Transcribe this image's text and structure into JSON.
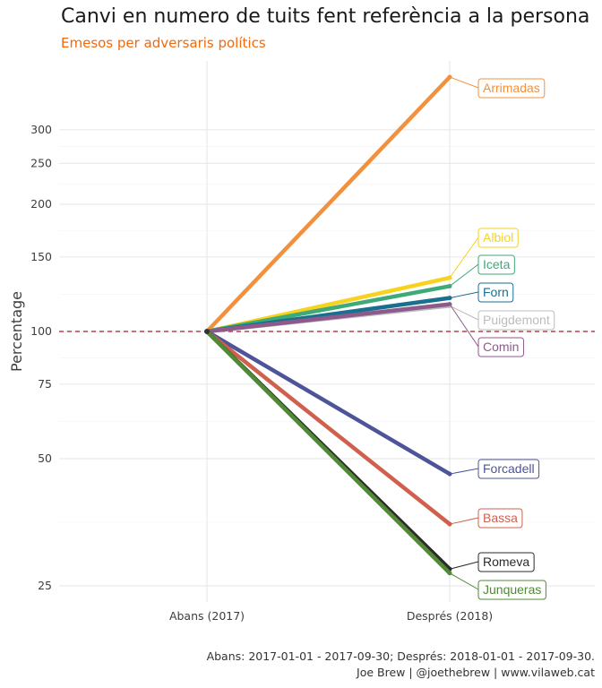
{
  "chart_data": {
    "type": "line",
    "title": "Canvi en numero de tuits fent referència a la persona",
    "subtitle": "Emesos per adversaris polítics",
    "ylabel": "Percentage",
    "xlabel": "",
    "categories": [
      "Abans (2017)",
      "Després (2018)"
    ],
    "y_scale": "log",
    "ylim": [
      22,
      430
    ],
    "y_ticks": [
      25,
      50,
      75,
      100,
      150,
      200,
      250,
      300
    ],
    "reference_line": {
      "y": 100,
      "style": "dashed",
      "color": "#a11d21"
    },
    "grid": true,
    "series": [
      {
        "name": "Arrimadas",
        "values": [
          100,
          400
        ],
        "color": "#f2913d"
      },
      {
        "name": "Albiol",
        "values": [
          100,
          134
        ],
        "color": "#f7d21e"
      },
      {
        "name": "Iceta",
        "values": [
          100,
          128
        ],
        "color": "#3daa77"
      },
      {
        "name": "Forn",
        "values": [
          100,
          120
        ],
        "color": "#1b6f8e"
      },
      {
        "name": "Puigdemont",
        "values": [
          100,
          115
        ],
        "color": "#bcbcbc"
      },
      {
        "name": "Comin",
        "values": [
          100,
          116
        ],
        "color": "#8e5a8c"
      },
      {
        "name": "Forcadell",
        "values": [
          100,
          46
        ],
        "color": "#4d5499"
      },
      {
        "name": "Bassa",
        "values": [
          100,
          35
        ],
        "color": "#d0604d"
      },
      {
        "name": "Romeva",
        "values": [
          100,
          27.4
        ],
        "color": "#2b2b2b"
      },
      {
        "name": "Junqueras",
        "values": [
          100,
          26.8
        ],
        "color": "#4f8a35"
      }
    ],
    "subtitle_color": "#f06a0f"
  },
  "caption": {
    "line1": "Abans: 2017-01-01 - 2017-09-30; Després: 2018-01-01 - 2017-09-30.",
    "line2": "Joe Brew | @joethebrew | www.vilaweb.cat"
  }
}
